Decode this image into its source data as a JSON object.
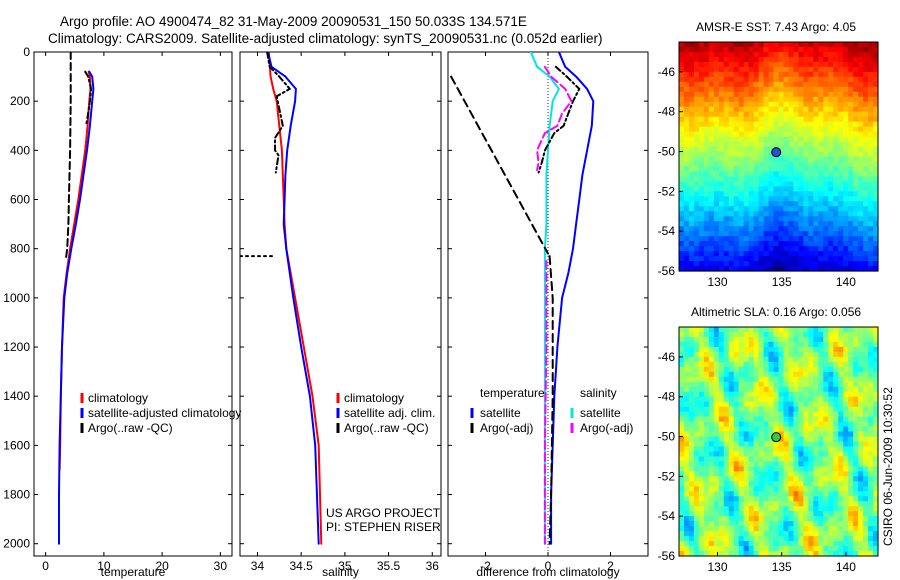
{
  "figure": {
    "title_line1": "Argo profile: AO 4900474_82 31-May-2009 20090531_150 50.033S 134.571E",
    "title_line2": "Climatology: CARS2009. Satellite-adjusted climatology: synTS_20090531.nc (0.052d earlier)",
    "side_stamp": "CSIRO 06-Jun-2009 10:30:52"
  },
  "colors": {
    "climatology": "#ff0000",
    "satellite": "#0000ff",
    "argo": "#000000",
    "sal_satellite": "#00e5e5",
    "sal_argo": "#ff00ff"
  },
  "chart_data": [
    {
      "type": "line",
      "id": "temperature",
      "xlabel": "temperature",
      "ylabel": "",
      "xlim": [
        -2,
        32
      ],
      "ylim": [
        2050,
        0
      ],
      "xticks": [
        0,
        10,
        20,
        30
      ],
      "yticks": [
        0,
        200,
        400,
        600,
        800,
        1000,
        1200,
        1400,
        1600,
        1800,
        2000
      ],
      "series": [
        {
          "name": "climatology",
          "color": "#ff0000",
          "dash": "",
          "x": [
            7.4,
            7.6,
            7.7,
            7.5,
            7.2,
            6.8,
            6.2,
            5.6,
            4.9,
            4.2,
            3.6,
            3.1,
            2.8,
            2.6,
            2.5,
            2.4
          ],
          "y": [
            80,
            100,
            150,
            200,
            300,
            400,
            500,
            600,
            700,
            800,
            900,
            1000,
            1200,
            1400,
            1600,
            1700
          ]
        },
        {
          "name": "satellite-adjusted climatology",
          "color": "#0000ff",
          "dash": "",
          "x": [
            7.5,
            8.0,
            8.2,
            8.0,
            7.6,
            7.1,
            6.5,
            5.9,
            5.2,
            4.4,
            3.7,
            3.2,
            2.8,
            2.6,
            2.4,
            2.3,
            2.3
          ],
          "y": [
            80,
            100,
            150,
            200,
            300,
            400,
            500,
            600,
            700,
            800,
            900,
            1000,
            1200,
            1400,
            1600,
            1800,
            2000
          ]
        },
        {
          "name": "Argo(..raw -QC)",
          "color": "#000000",
          "dash": "6,3,2,3",
          "x": [
            6.8,
            7.3,
            7.8,
            7.6,
            7.1,
            6.9
          ],
          "y": [
            80,
            100,
            150,
            200,
            280,
            300
          ]
        },
        {
          "name": "Argo(..raw -QC)",
          "color": "#000000",
          "dash": "7,4",
          "x": [
            4.3,
            4.3,
            4.2,
            4.1,
            4.0,
            3.9,
            3.7,
            3.5
          ],
          "y": [
            0,
            200,
            400,
            500,
            600,
            700,
            800,
            840
          ]
        }
      ],
      "legend": {
        "position": "lower-right",
        "entries": [
          {
            "label": "climatology",
            "color": "#ff0000"
          },
          {
            "label": "satellite-adjusted climatology",
            "color": "#0000ff"
          },
          {
            "label": "Argo(..raw -QC)",
            "color": "#000000"
          }
        ]
      }
    },
    {
      "type": "line",
      "id": "salinity",
      "xlabel": "salinity",
      "ylabel": "",
      "xlim": [
        33.8,
        36.1
      ],
      "ylim": [
        2050,
        0
      ],
      "xticks": [
        34,
        34.5,
        35,
        35.5,
        36
      ],
      "yticks": [
        0,
        200,
        400,
        600,
        800,
        1000,
        1200,
        1400,
        1600,
        1800,
        2000
      ],
      "series": [
        {
          "name": "climatology",
          "color": "#ff0000",
          "dash": "",
          "x": [
            34.13,
            34.15,
            34.18,
            34.22,
            34.25,
            34.28,
            34.29,
            34.3,
            34.31,
            34.33,
            34.43,
            34.53,
            34.63,
            34.7,
            34.73
          ],
          "y": [
            0,
            100,
            150,
            200,
            300,
            400,
            500,
            600,
            700,
            800,
            1000,
            1200,
            1400,
            1600,
            2000
          ]
        },
        {
          "name": "satellite adj. clim.",
          "color": "#0000ff",
          "dash": "",
          "x": [
            34.12,
            34.16,
            34.32,
            34.44,
            34.43,
            34.38,
            34.34,
            34.32,
            34.31,
            34.3,
            34.33,
            34.41,
            34.5,
            34.6,
            34.66,
            34.7
          ],
          "y": [
            0,
            60,
            100,
            150,
            200,
            300,
            400,
            500,
            600,
            700,
            800,
            1000,
            1200,
            1400,
            1600,
            2000
          ]
        },
        {
          "name": "Argo(..raw -QC)",
          "color": "#000000",
          "dash": "6,3,2,3",
          "x": [
            34.11,
            34.14,
            34.25,
            34.37,
            34.22,
            34.29,
            34.2,
            34.2,
            34.24,
            34.21
          ],
          "y": [
            0,
            60,
            100,
            150,
            180,
            300,
            350,
            400,
            420,
            490
          ]
        },
        {
          "name": "Argo(..raw -QC)",
          "color": "#000000",
          "dash": "2,4",
          "x": [
            33.8,
            34.2
          ],
          "y": [
            830,
            830
          ]
        }
      ],
      "legend": {
        "position": "lower-right",
        "entries": [
          {
            "label": "climatology",
            "color": "#ff0000"
          },
          {
            "label": "satellite adj. clim.",
            "color": "#0000ff"
          },
          {
            "label": "Argo(..raw -QC)",
            "color": "#000000"
          }
        ]
      },
      "annotations": [
        "US ARGO PROJECT",
        "PI: STEPHEN RISER"
      ]
    },
    {
      "type": "line",
      "id": "difference",
      "xlabel": "difference from climatology",
      "ylabel": "",
      "xlim": [
        -3.2,
        3.2
      ],
      "ylim": [
        2050,
        0
      ],
      "xticks": [
        -2,
        0,
        2
      ],
      "yticks": [
        0,
        200,
        400,
        600,
        800,
        1000,
        1200,
        1400,
        1600,
        1800,
        2000
      ],
      "series": [
        {
          "name": "satellite (temperature)",
          "color": "#0000ff",
          "dash": "",
          "x": [
            0.35,
            0.55,
            0.9,
            1.25,
            1.45,
            1.4,
            1.25,
            1.1,
            1.0,
            0.9,
            0.8,
            0.65,
            0.45,
            0.3,
            0.2,
            0.15,
            0.1,
            0.1
          ],
          "y": [
            0,
            60,
            100,
            150,
            200,
            300,
            400,
            500,
            600,
            700,
            800,
            900,
            1000,
            1200,
            1400,
            1600,
            1800,
            2000
          ]
        },
        {
          "name": "satellite (salinity)",
          "color": "#00e5e5",
          "dash": "",
          "x": [
            -0.55,
            -0.35,
            0.05,
            0.35,
            0.15,
            0.05,
            0.0,
            -0.05,
            -0.05,
            -0.05,
            -0.1,
            -0.1,
            -0.1,
            -0.1
          ],
          "y": [
            0,
            60,
            100,
            150,
            200,
            300,
            400,
            500,
            600,
            700,
            800,
            1000,
            1400,
            2000
          ]
        },
        {
          "name": "Argo(-adj) (temperature)",
          "color": "#000000",
          "dash": "8,5",
          "x": [
            -3.1,
            0.0
          ],
          "y": [
            100,
            820
          ]
        },
        {
          "name": "Argo(-adj) (temperature)",
          "color": "#000000",
          "dash": "8,5",
          "x": [
            0.05,
            0.15,
            0.15,
            0.1,
            0.05
          ],
          "y": [
            830,
            1000,
            1400,
            1800,
            2000
          ]
        },
        {
          "name": "Argo(-adj) (temperature, upper)",
          "color": "#000000",
          "dash": "6,3,2,3",
          "x": [
            0.25,
            0.6,
            1.0,
            0.8,
            0.5,
            0.2,
            -0.1,
            -0.2,
            -0.3
          ],
          "y": [
            60,
            100,
            150,
            200,
            300,
            330,
            400,
            450,
            490
          ]
        },
        {
          "name": "Argo(-adj) (salinity)",
          "color": "#ff00ff",
          "dash": "8,4",
          "x": [
            -0.1,
            0.1,
            0.55,
            0.75,
            0.45,
            0.3,
            -0.1,
            -0.35,
            -0.3,
            -0.35
          ],
          "y": [
            60,
            100,
            150,
            200,
            250,
            300,
            330,
            400,
            450,
            480
          ]
        },
        {
          "name": "Argo(-adj) (salinity)",
          "color": "#ff00ff",
          "dash": "8,4",
          "x": [
            -0.05,
            -0.05,
            -0.1,
            -0.1
          ],
          "y": [
            850,
            1200,
            1600,
            2000
          ]
        }
      ],
      "legend": {
        "position": "lower-center",
        "columns": [
          {
            "header": "temperature",
            "entries": [
              {
                "label": "satellite",
                "color": "#0000ff"
              },
              {
                "label": "Argo(-adj)",
                "color": "#000000"
              }
            ]
          },
          {
            "header": "salinity",
            "entries": [
              {
                "label": "satellite",
                "color": "#00e5e5"
              },
              {
                "label": "Argo(-adj)",
                "color": "#ff00ff"
              }
            ]
          }
        ]
      }
    },
    {
      "type": "heatmap",
      "id": "sst_map",
      "title": "AMSR-E SST: 7.43 Argo: 4.05",
      "xlim": [
        127,
        142.5
      ],
      "ylim": [
        -56,
        -44.5
      ],
      "xticks": [
        130,
        135,
        140
      ],
      "yticks": [
        -56,
        -54,
        -52,
        -50,
        -48,
        -46
      ],
      "marker": {
        "lon": 134.571,
        "lat": -50.033,
        "fill": "#2a4fd8"
      },
      "colorscale": "jet",
      "colorscale_hint": [
        "#0000a0",
        "#0040ff",
        "#00c8ff",
        "#40d080",
        "#c8e040",
        "#ffb000",
        "#e04000",
        "#a00000"
      ]
    },
    {
      "type": "heatmap",
      "id": "sla_map",
      "title": "Altimetric SLA: 0.16 Argo: 0.056",
      "xlim": [
        127,
        142.5
      ],
      "ylim": [
        -56,
        -44.5
      ],
      "xticks": [
        130,
        135,
        140
      ],
      "yticks": [
        -56,
        -54,
        -52,
        -50,
        -48,
        -46
      ],
      "marker": {
        "lon": 134.571,
        "lat": -50.033,
        "fill": "#38c840"
      },
      "colorscale": "jet"
    }
  ]
}
